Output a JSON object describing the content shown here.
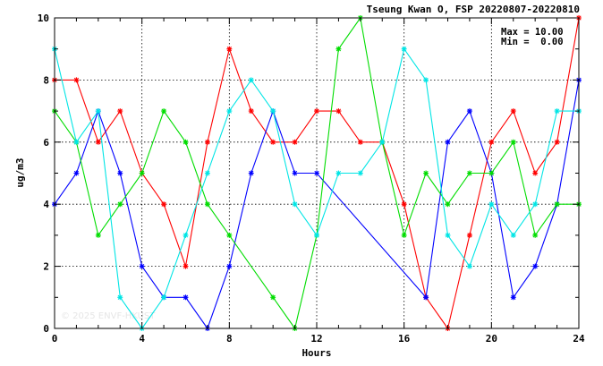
{
  "chart_data": {
    "type": "line",
    "title": "Tseung Kwan O, FSP 20220807-20220810",
    "xlabel": "Hours",
    "ylabel": "ug/m3",
    "xlim": [
      0,
      24
    ],
    "ylim": [
      0,
      10
    ],
    "xticks": [
      "0",
      "4",
      "8",
      "12",
      "16",
      "20",
      "24"
    ],
    "yticks": [
      "0",
      "2",
      "4",
      "6",
      "8",
      "10"
    ],
    "grid": true,
    "stats": {
      "max_label": "Max = 10.00",
      "min_label": "Min =  0.00"
    },
    "watermark": "© 2025 ENVF-HKUST",
    "series": [
      {
        "color": "#ff0000",
        "x": [
          0,
          1,
          2,
          3,
          4,
          5,
          6,
          7,
          8,
          9,
          10,
          11,
          12,
          13,
          14,
          15,
          16,
          17,
          18,
          19,
          20,
          21,
          22,
          23,
          24
        ],
        "y": [
          8,
          8,
          6,
          7,
          5,
          4,
          2,
          6,
          9,
          7,
          6,
          6,
          7,
          7,
          6,
          6,
          4,
          1,
          0,
          3,
          6,
          7,
          5,
          6,
          10
        ]
      },
      {
        "color": "#0000ff",
        "x": [
          0,
          1,
          2,
          3,
          4,
          5,
          6,
          7,
          8,
          9,
          10,
          11,
          12,
          17,
          18,
          19,
          20,
          21,
          22,
          23,
          24
        ],
        "y": [
          4,
          5,
          7,
          5,
          2,
          1,
          1,
          0,
          2,
          5,
          7,
          5,
          5,
          1,
          6,
          7,
          5,
          1,
          2,
          4,
          8
        ]
      },
      {
        "color": "#00dd00",
        "x": [
          0,
          1,
          2,
          3,
          4,
          5,
          6,
          7,
          8,
          10,
          11,
          12,
          13,
          14,
          15,
          16,
          17,
          18,
          19,
          20,
          21,
          22,
          23,
          24
        ],
        "y": [
          7,
          6,
          3,
          4,
          5,
          7,
          6,
          4,
          3,
          1,
          0,
          3,
          9,
          10,
          6,
          3,
          5,
          4,
          5,
          5,
          6,
          3,
          4,
          4
        ]
      },
      {
        "color": "#00e5e5",
        "x": [
          0,
          1,
          2,
          3,
          4,
          5,
          6,
          7,
          8,
          9,
          10,
          11,
          12,
          13,
          14,
          15,
          16,
          17,
          18,
          19,
          20,
          21,
          22,
          23,
          24
        ],
        "y": [
          9,
          6,
          7,
          1,
          0,
          1,
          3,
          5,
          7,
          8,
          7,
          4,
          3,
          5,
          5,
          6,
          9,
          8,
          3,
          2,
          4,
          3,
          4,
          7,
          7
        ]
      }
    ]
  }
}
